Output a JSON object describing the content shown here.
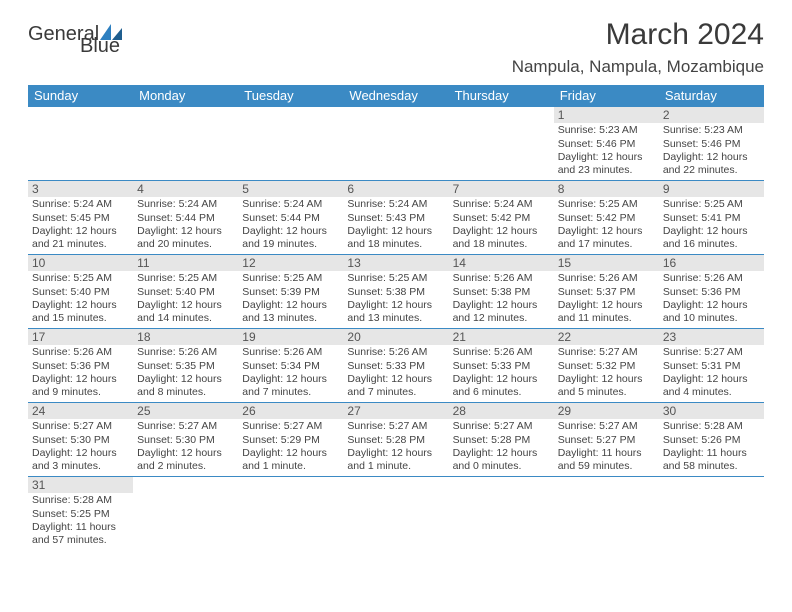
{
  "brand": {
    "text1": "General",
    "text2": "Blue"
  },
  "title": "March 2024",
  "subtitle": "Nampula, Nampula, Mozambique",
  "colors": {
    "header_bg": "#3b8ac4",
    "header_text": "#ffffff",
    "daynum_bg": "#e6e6e6",
    "body_text": "#444444",
    "rule": "#3b8ac4"
  },
  "weekdays": [
    "Sunday",
    "Monday",
    "Tuesday",
    "Wednesday",
    "Thursday",
    "Friday",
    "Saturday"
  ],
  "weeks": [
    [
      null,
      null,
      null,
      null,
      null,
      {
        "n": "1",
        "sr": "Sunrise: 5:23 AM",
        "ss": "Sunset: 5:46 PM",
        "d1": "Daylight: 12 hours",
        "d2": "and 23 minutes."
      },
      {
        "n": "2",
        "sr": "Sunrise: 5:23 AM",
        "ss": "Sunset: 5:46 PM",
        "d1": "Daylight: 12 hours",
        "d2": "and 22 minutes."
      }
    ],
    [
      {
        "n": "3",
        "sr": "Sunrise: 5:24 AM",
        "ss": "Sunset: 5:45 PM",
        "d1": "Daylight: 12 hours",
        "d2": "and 21 minutes."
      },
      {
        "n": "4",
        "sr": "Sunrise: 5:24 AM",
        "ss": "Sunset: 5:44 PM",
        "d1": "Daylight: 12 hours",
        "d2": "and 20 minutes."
      },
      {
        "n": "5",
        "sr": "Sunrise: 5:24 AM",
        "ss": "Sunset: 5:44 PM",
        "d1": "Daylight: 12 hours",
        "d2": "and 19 minutes."
      },
      {
        "n": "6",
        "sr": "Sunrise: 5:24 AM",
        "ss": "Sunset: 5:43 PM",
        "d1": "Daylight: 12 hours",
        "d2": "and 18 minutes."
      },
      {
        "n": "7",
        "sr": "Sunrise: 5:24 AM",
        "ss": "Sunset: 5:42 PM",
        "d1": "Daylight: 12 hours",
        "d2": "and 18 minutes."
      },
      {
        "n": "8",
        "sr": "Sunrise: 5:25 AM",
        "ss": "Sunset: 5:42 PM",
        "d1": "Daylight: 12 hours",
        "d2": "and 17 minutes."
      },
      {
        "n": "9",
        "sr": "Sunrise: 5:25 AM",
        "ss": "Sunset: 5:41 PM",
        "d1": "Daylight: 12 hours",
        "d2": "and 16 minutes."
      }
    ],
    [
      {
        "n": "10",
        "sr": "Sunrise: 5:25 AM",
        "ss": "Sunset: 5:40 PM",
        "d1": "Daylight: 12 hours",
        "d2": "and 15 minutes."
      },
      {
        "n": "11",
        "sr": "Sunrise: 5:25 AM",
        "ss": "Sunset: 5:40 PM",
        "d1": "Daylight: 12 hours",
        "d2": "and 14 minutes."
      },
      {
        "n": "12",
        "sr": "Sunrise: 5:25 AM",
        "ss": "Sunset: 5:39 PM",
        "d1": "Daylight: 12 hours",
        "d2": "and 13 minutes."
      },
      {
        "n": "13",
        "sr": "Sunrise: 5:25 AM",
        "ss": "Sunset: 5:38 PM",
        "d1": "Daylight: 12 hours",
        "d2": "and 13 minutes."
      },
      {
        "n": "14",
        "sr": "Sunrise: 5:26 AM",
        "ss": "Sunset: 5:38 PM",
        "d1": "Daylight: 12 hours",
        "d2": "and 12 minutes."
      },
      {
        "n": "15",
        "sr": "Sunrise: 5:26 AM",
        "ss": "Sunset: 5:37 PM",
        "d1": "Daylight: 12 hours",
        "d2": "and 11 minutes."
      },
      {
        "n": "16",
        "sr": "Sunrise: 5:26 AM",
        "ss": "Sunset: 5:36 PM",
        "d1": "Daylight: 12 hours",
        "d2": "and 10 minutes."
      }
    ],
    [
      {
        "n": "17",
        "sr": "Sunrise: 5:26 AM",
        "ss": "Sunset: 5:36 PM",
        "d1": "Daylight: 12 hours",
        "d2": "and 9 minutes."
      },
      {
        "n": "18",
        "sr": "Sunrise: 5:26 AM",
        "ss": "Sunset: 5:35 PM",
        "d1": "Daylight: 12 hours",
        "d2": "and 8 minutes."
      },
      {
        "n": "19",
        "sr": "Sunrise: 5:26 AM",
        "ss": "Sunset: 5:34 PM",
        "d1": "Daylight: 12 hours",
        "d2": "and 7 minutes."
      },
      {
        "n": "20",
        "sr": "Sunrise: 5:26 AM",
        "ss": "Sunset: 5:33 PM",
        "d1": "Daylight: 12 hours",
        "d2": "and 7 minutes."
      },
      {
        "n": "21",
        "sr": "Sunrise: 5:26 AM",
        "ss": "Sunset: 5:33 PM",
        "d1": "Daylight: 12 hours",
        "d2": "and 6 minutes."
      },
      {
        "n": "22",
        "sr": "Sunrise: 5:27 AM",
        "ss": "Sunset: 5:32 PM",
        "d1": "Daylight: 12 hours",
        "d2": "and 5 minutes."
      },
      {
        "n": "23",
        "sr": "Sunrise: 5:27 AM",
        "ss": "Sunset: 5:31 PM",
        "d1": "Daylight: 12 hours",
        "d2": "and 4 minutes."
      }
    ],
    [
      {
        "n": "24",
        "sr": "Sunrise: 5:27 AM",
        "ss": "Sunset: 5:30 PM",
        "d1": "Daylight: 12 hours",
        "d2": "and 3 minutes."
      },
      {
        "n": "25",
        "sr": "Sunrise: 5:27 AM",
        "ss": "Sunset: 5:30 PM",
        "d1": "Daylight: 12 hours",
        "d2": "and 2 minutes."
      },
      {
        "n": "26",
        "sr": "Sunrise: 5:27 AM",
        "ss": "Sunset: 5:29 PM",
        "d1": "Daylight: 12 hours",
        "d2": "and 1 minute."
      },
      {
        "n": "27",
        "sr": "Sunrise: 5:27 AM",
        "ss": "Sunset: 5:28 PM",
        "d1": "Daylight: 12 hours",
        "d2": "and 1 minute."
      },
      {
        "n": "28",
        "sr": "Sunrise: 5:27 AM",
        "ss": "Sunset: 5:28 PM",
        "d1": "Daylight: 12 hours",
        "d2": "and 0 minutes."
      },
      {
        "n": "29",
        "sr": "Sunrise: 5:27 AM",
        "ss": "Sunset: 5:27 PM",
        "d1": "Daylight: 11 hours",
        "d2": "and 59 minutes."
      },
      {
        "n": "30",
        "sr": "Sunrise: 5:28 AM",
        "ss": "Sunset: 5:26 PM",
        "d1": "Daylight: 11 hours",
        "d2": "and 58 minutes."
      }
    ],
    [
      {
        "n": "31",
        "sr": "Sunrise: 5:28 AM",
        "ss": "Sunset: 5:25 PM",
        "d1": "Daylight: 11 hours",
        "d2": "and 57 minutes."
      },
      null,
      null,
      null,
      null,
      null,
      null
    ]
  ]
}
